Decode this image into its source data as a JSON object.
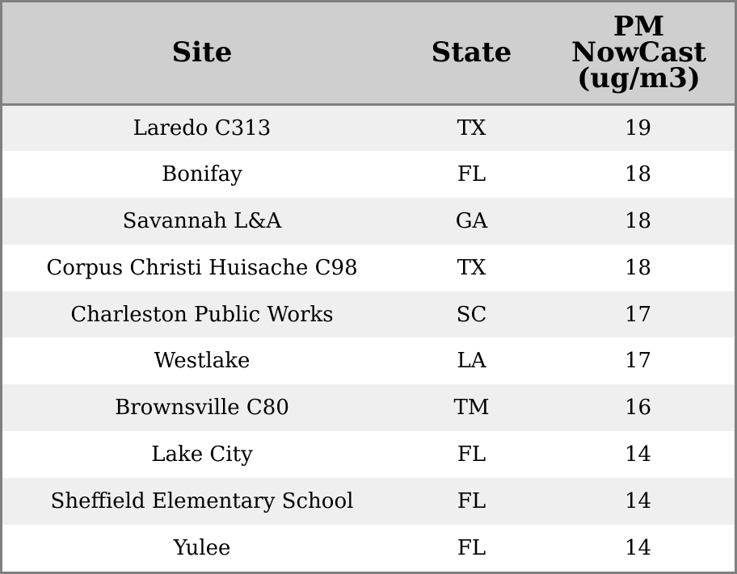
{
  "chart_data": {
    "type": "table",
    "columns": [
      "Site",
      "State",
      "PM NowCast (ug/m3)"
    ],
    "header_lines": {
      "site": "Site",
      "state": "State",
      "pm": [
        "PM",
        "NowCast",
        "(ug/m3)"
      ]
    },
    "rows": [
      {
        "site": "Laredo C313",
        "state": "TX",
        "pm": 19
      },
      {
        "site": "Bonifay",
        "state": "FL",
        "pm": 18
      },
      {
        "site": "Savannah L&A",
        "state": "GA",
        "pm": 18
      },
      {
        "site": "Corpus Christi Huisache C98",
        "state": "TX",
        "pm": 18
      },
      {
        "site": "Charleston Public Works",
        "state": "SC",
        "pm": 17
      },
      {
        "site": "Westlake",
        "state": "LA",
        "pm": 17
      },
      {
        "site": "Brownsville C80",
        "state": "TM",
        "pm": 16
      },
      {
        "site": "Lake City",
        "state": "FL",
        "pm": 14
      },
      {
        "site": "Sheffield Elementary School",
        "state": "FL",
        "pm": 14
      },
      {
        "site": "Yulee",
        "state": "FL",
        "pm": 14
      }
    ]
  },
  "colors": {
    "header_bg": "#cfcfcf",
    "row_alt_bg": "#efefef",
    "row_bg": "#ffffff",
    "border": "#808080"
  }
}
